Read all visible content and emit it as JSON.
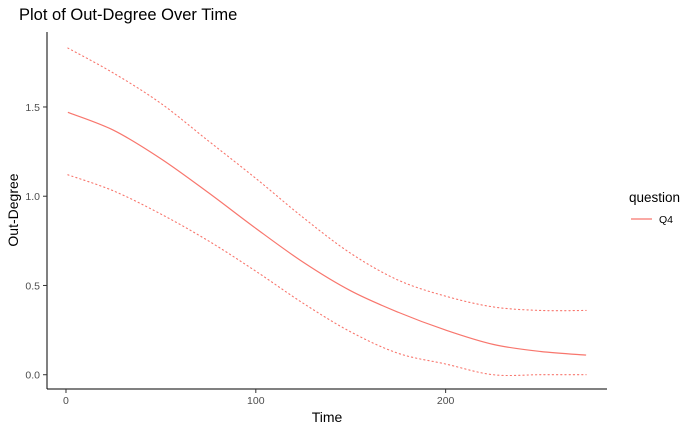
{
  "chart_data": {
    "type": "line",
    "title": "Plot of Out-Degree Over Time",
    "xlabel": "Time",
    "ylabel": "Out-Degree",
    "xlim": [
      -10,
      285
    ],
    "ylim": [
      -0.08,
      1.92
    ],
    "x_ticks": [
      0,
      100,
      200
    ],
    "y_ticks": [
      0.0,
      0.5,
      1.0,
      1.5
    ],
    "x_tick_labels": [
      "0",
      "100",
      "200"
    ],
    "y_tick_labels": [
      "0.0",
      "0.5",
      "1.0",
      "1.5"
    ],
    "grid": false,
    "legend": {
      "title": "question",
      "position": "right",
      "entries": [
        "Q4"
      ]
    },
    "colors": {
      "Q4": "#f8766d"
    },
    "series": [
      {
        "name": "Q4",
        "style": "solid",
        "x": [
          1,
          25,
          50,
          75,
          100,
          125,
          150,
          175,
          200,
          225,
          250,
          274
        ],
        "y": [
          1.47,
          1.37,
          1.21,
          1.02,
          0.82,
          0.63,
          0.47,
          0.35,
          0.25,
          0.17,
          0.13,
          0.11
        ]
      },
      {
        "name": "Q4 upper bound",
        "style": "dotted",
        "x": [
          1,
          25,
          50,
          75,
          100,
          125,
          150,
          175,
          200,
          225,
          250,
          274
        ],
        "y": [
          1.83,
          1.69,
          1.52,
          1.31,
          1.1,
          0.88,
          0.68,
          0.53,
          0.44,
          0.38,
          0.36,
          0.36
        ]
      },
      {
        "name": "Q4 lower bound",
        "style": "dotted",
        "x": [
          1,
          25,
          50,
          75,
          100,
          125,
          150,
          175,
          200,
          225,
          250,
          274
        ],
        "y": [
          1.12,
          1.03,
          0.9,
          0.75,
          0.58,
          0.4,
          0.24,
          0.12,
          0.06,
          0.0,
          0.0,
          0.0
        ]
      }
    ]
  }
}
